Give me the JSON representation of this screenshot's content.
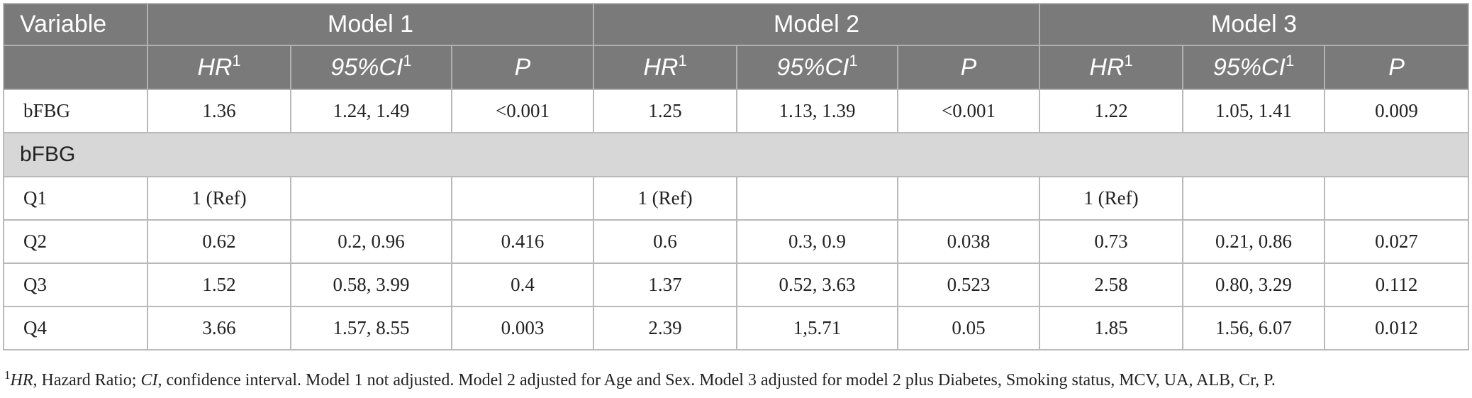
{
  "header": {
    "variable_label": "Variable",
    "models": [
      "Model 1",
      "Model 2",
      "Model 3"
    ],
    "sub_columns": [
      {
        "label": "HR",
        "sup": "1"
      },
      {
        "label": "95%CI",
        "sup": "1"
      },
      {
        "label": "P",
        "sup": ""
      }
    ]
  },
  "rows_top": [
    {
      "label": "bFBG",
      "cells": [
        "1.36",
        "1.24, 1.49",
        "<0.001",
        "1.25",
        "1.13, 1.39",
        "<0.001",
        "1.22",
        "1.05, 1.41",
        "0.009"
      ]
    }
  ],
  "section": {
    "label": "bFBG"
  },
  "rows": [
    {
      "label": "Q1",
      "cells": [
        "1 (Ref)",
        "",
        "",
        "1 (Ref)",
        "",
        "",
        "1 (Ref)",
        "",
        ""
      ]
    },
    {
      "label": "Q2",
      "cells": [
        "0.62",
        "0.2, 0.96",
        "0.416",
        "0.6",
        "0.3, 0.9",
        "0.038",
        "0.73",
        "0.21, 0.86",
        "0.027"
      ]
    },
    {
      "label": "Q3",
      "cells": [
        "1.52",
        "0.58, 3.99",
        "0.4",
        "1.37",
        "0.52, 3.63",
        "0.523",
        "2.58",
        "0.80, 3.29",
        "0.112"
      ]
    },
    {
      "label": "Q4",
      "cells": [
        "3.66",
        "1.57, 8.55",
        "0.003",
        "2.39",
        "1,5.71",
        "0.05",
        "1.85",
        "1.56, 6.07",
        "0.012"
      ]
    }
  ],
  "footnote": {
    "sup": "1",
    "hr_abbr": "HR",
    "hr_text": ", Hazard Ratio; ",
    "ci_abbr": "CI",
    "rest": ", confidence interval. Model 1 not adjusted. Model 2 adjusted for Age and Sex. Model 3 adjusted for model 2 plus Diabetes, Smoking status, MCV, UA, ALB, Cr, P."
  },
  "colors": {
    "header_bg": "#7a7a7a",
    "section_bg": "#d7d7d7",
    "border": "#b9b9b9"
  }
}
